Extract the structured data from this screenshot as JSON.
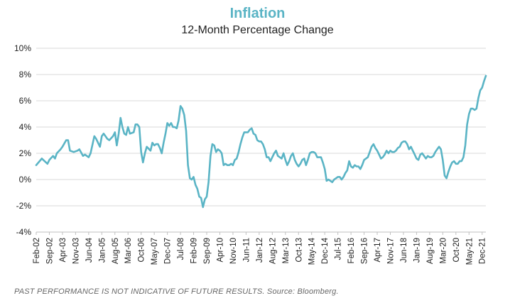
{
  "chart_data": {
    "type": "line",
    "title": "Inflation",
    "subtitle": "12-Month Percentage Change",
    "xlabel": "",
    "ylabel": "",
    "ylim": [
      -4,
      10
    ],
    "yticks": [
      10,
      8,
      6,
      4,
      2,
      0,
      -2,
      -4
    ],
    "ytick_labels": [
      "10%",
      "8%",
      "6%",
      "4%",
      "2%",
      "0%",
      "-2%",
      "-4%"
    ],
    "x_tick_labels": [
      "Feb-02",
      "Sep-02",
      "Apr-03",
      "Nov-03",
      "Jun-04",
      "Jan-05",
      "Aug-05",
      "Mar-06",
      "Oct-06",
      "May-07",
      "Dec-07",
      "Jul-08",
      "Feb-09",
      "Sep-09",
      "Apr-10",
      "Nov-10",
      "Jun-11",
      "Jan-12",
      "Aug-12",
      "Mar-13",
      "Oct-13",
      "May-14",
      "Dec-14",
      "Jul-15",
      "Feb-16",
      "Sep-16",
      "Apr-17",
      "Nov-17",
      "Jun-18",
      "Jan-19",
      "Aug-19",
      "Mar-20",
      "Oct-20",
      "May-21",
      "Dec-21"
    ],
    "grid": true,
    "line_color": "#5ab4c5",
    "series": [
      {
        "name": "",
        "points": [
          [
            "Feb-02",
            1.1
          ],
          [
            "May-02",
            1.6
          ],
          [
            "Aug-02",
            1.2
          ],
          [
            "Sep-02",
            1.5
          ],
          [
            "Nov-02",
            1.8
          ],
          [
            "Dec-02",
            1.6
          ],
          [
            "Jan-03",
            2.0
          ],
          [
            "Mar-03",
            2.3
          ],
          [
            "Apr-03",
            2.5
          ],
          [
            "Jun-03",
            3.0
          ],
          [
            "Jul-03",
            3.0
          ],
          [
            "Aug-03",
            2.2
          ],
          [
            "Oct-03",
            2.1
          ],
          [
            "Dec-03",
            2.2
          ],
          [
            "Jan-04",
            2.3
          ],
          [
            "Mar-04",
            1.8
          ],
          [
            "Apr-04",
            1.9
          ],
          [
            "Jun-04",
            1.7
          ],
          [
            "Jul-04",
            2.0
          ],
          [
            "Sep-04",
            3.3
          ],
          [
            "Oct-04",
            3.1
          ],
          [
            "Dec-04",
            2.5
          ],
          [
            "Jan-05",
            3.3
          ],
          [
            "Feb-05",
            3.5
          ],
          [
            "Apr-05",
            3.1
          ],
          [
            "May-05",
            3.0
          ],
          [
            "Jul-05",
            3.3
          ],
          [
            "Aug-05",
            3.6
          ],
          [
            "Sep-05",
            2.6
          ],
          [
            "Oct-05",
            3.5
          ],
          [
            "Nov-05",
            4.7
          ],
          [
            "Dec-05",
            4.0
          ],
          [
            "Jan-06",
            3.5
          ],
          [
            "Feb-06",
            3.4
          ],
          [
            "Mar-06",
            4.0
          ],
          [
            "Apr-06",
            3.5
          ],
          [
            "Jun-06",
            3.6
          ],
          [
            "Jul-06",
            4.2
          ],
          [
            "Aug-06",
            4.2
          ],
          [
            "Sep-06",
            4.0
          ],
          [
            "Oct-06",
            2.1
          ],
          [
            "Nov-06",
            1.3
          ],
          [
            "Dec-06",
            2.0
          ],
          [
            "Jan-07",
            2.5
          ],
          [
            "Mar-07",
            2.2
          ],
          [
            "Apr-07",
            2.8
          ],
          [
            "May-07",
            2.6
          ],
          [
            "Jun-07",
            2.7
          ],
          [
            "Jul-07",
            2.7
          ],
          [
            "Aug-07",
            2.4
          ],
          [
            "Sep-07",
            2.0
          ],
          [
            "Oct-07",
            2.8
          ],
          [
            "Nov-07",
            3.5
          ],
          [
            "Dec-07",
            4.3
          ],
          [
            "Jan-08",
            4.1
          ],
          [
            "Feb-08",
            4.3
          ],
          [
            "Mar-08",
            4.0
          ],
          [
            "Apr-08",
            4.0
          ],
          [
            "May-08",
            3.9
          ],
          [
            "Jun-08",
            4.5
          ],
          [
            "Jul-08",
            5.6
          ],
          [
            "Aug-08",
            5.4
          ],
          [
            "Sep-08",
            4.9
          ],
          [
            "Oct-08",
            3.7
          ],
          [
            "Nov-08",
            1.1
          ],
          [
            "Dec-08",
            0.1
          ],
          [
            "Jan-09",
            0.0
          ],
          [
            "Feb-09",
            0.2
          ],
          [
            "Mar-09",
            -0.4
          ],
          [
            "Apr-09",
            -0.7
          ],
          [
            "May-09",
            -1.3
          ],
          [
            "Jun-09",
            -1.4
          ],
          [
            "Jul-09",
            -2.1
          ],
          [
            "Aug-09",
            -1.5
          ],
          [
            "Sep-09",
            -1.3
          ],
          [
            "Oct-09",
            -0.2
          ],
          [
            "Nov-09",
            1.8
          ],
          [
            "Dec-09",
            2.7
          ],
          [
            "Jan-10",
            2.6
          ],
          [
            "Feb-10",
            2.1
          ],
          [
            "Mar-10",
            2.3
          ],
          [
            "Apr-10",
            2.2
          ],
          [
            "May-10",
            2.0
          ],
          [
            "Jun-10",
            1.1
          ],
          [
            "Jul-10",
            1.2
          ],
          [
            "Aug-10",
            1.1
          ],
          [
            "Sep-10",
            1.1
          ],
          [
            "Oct-10",
            1.2
          ],
          [
            "Nov-10",
            1.1
          ],
          [
            "Dec-10",
            1.5
          ],
          [
            "Jan-11",
            1.6
          ],
          [
            "Feb-11",
            2.1
          ],
          [
            "Mar-11",
            2.7
          ],
          [
            "Apr-11",
            3.2
          ],
          [
            "May-11",
            3.6
          ],
          [
            "Jun-11",
            3.6
          ],
          [
            "Jul-11",
            3.6
          ],
          [
            "Aug-11",
            3.8
          ],
          [
            "Sep-11",
            3.9
          ],
          [
            "Oct-11",
            3.5
          ],
          [
            "Nov-11",
            3.4
          ],
          [
            "Dec-11",
            3.0
          ],
          [
            "Jan-12",
            2.9
          ],
          [
            "Feb-12",
            2.9
          ],
          [
            "Mar-12",
            2.7
          ],
          [
            "Apr-12",
            2.3
          ],
          [
            "May-12",
            1.7
          ],
          [
            "Jun-12",
            1.7
          ],
          [
            "Jul-12",
            1.4
          ],
          [
            "Aug-12",
            1.7
          ],
          [
            "Sep-12",
            2.0
          ],
          [
            "Oct-12",
            2.2
          ],
          [
            "Nov-12",
            1.8
          ],
          [
            "Dec-12",
            1.7
          ],
          [
            "Jan-13",
            1.6
          ],
          [
            "Feb-13",
            2.0
          ],
          [
            "Mar-13",
            1.5
          ],
          [
            "Apr-13",
            1.1
          ],
          [
            "May-13",
            1.4
          ],
          [
            "Jun-13",
            1.8
          ],
          [
            "Jul-13",
            2.0
          ],
          [
            "Aug-13",
            1.5
          ],
          [
            "Sep-13",
            1.2
          ],
          [
            "Oct-13",
            1.0
          ],
          [
            "Nov-13",
            1.2
          ],
          [
            "Dec-13",
            1.5
          ],
          [
            "Jan-14",
            1.6
          ],
          [
            "Feb-14",
            1.1
          ],
          [
            "Mar-14",
            1.5
          ],
          [
            "Apr-14",
            2.0
          ],
          [
            "May-14",
            2.1
          ],
          [
            "Jun-14",
            2.1
          ],
          [
            "Jul-14",
            2.0
          ],
          [
            "Aug-14",
            1.7
          ],
          [
            "Sep-14",
            1.7
          ],
          [
            "Oct-14",
            1.7
          ],
          [
            "Nov-14",
            1.3
          ],
          [
            "Dec-14",
            0.8
          ],
          [
            "Jan-15",
            -0.1
          ],
          [
            "Feb-15",
            0.0
          ],
          [
            "Mar-15",
            -0.1
          ],
          [
            "Apr-15",
            -0.2
          ],
          [
            "May-15",
            0.0
          ],
          [
            "Jun-15",
            0.1
          ],
          [
            "Jul-15",
            0.2
          ],
          [
            "Aug-15",
            0.2
          ],
          [
            "Sep-15",
            0.0
          ],
          [
            "Oct-15",
            0.2
          ],
          [
            "Nov-15",
            0.5
          ],
          [
            "Dec-15",
            0.7
          ],
          [
            "Jan-16",
            1.4
          ],
          [
            "Feb-16",
            1.0
          ],
          [
            "Mar-16",
            0.9
          ],
          [
            "Apr-16",
            1.1
          ],
          [
            "May-16",
            1.0
          ],
          [
            "Jun-16",
            1.0
          ],
          [
            "Jul-16",
            0.8
          ],
          [
            "Aug-16",
            1.1
          ],
          [
            "Sep-16",
            1.5
          ],
          [
            "Oct-16",
            1.6
          ],
          [
            "Nov-16",
            1.7
          ],
          [
            "Dec-16",
            2.1
          ],
          [
            "Jan-17",
            2.5
          ],
          [
            "Feb-17",
            2.7
          ],
          [
            "Mar-17",
            2.4
          ],
          [
            "Apr-17",
            2.2
          ],
          [
            "May-17",
            1.9
          ],
          [
            "Jun-17",
            1.6
          ],
          [
            "Jul-17",
            1.7
          ],
          [
            "Aug-17",
            1.9
          ],
          [
            "Sep-17",
            2.2
          ],
          [
            "Oct-17",
            2.0
          ],
          [
            "Nov-17",
            2.2
          ],
          [
            "Dec-17",
            2.1
          ],
          [
            "Jan-18",
            2.1
          ],
          [
            "Feb-18",
            2.2
          ],
          [
            "Mar-18",
            2.4
          ],
          [
            "Apr-18",
            2.5
          ],
          [
            "May-18",
            2.8
          ],
          [
            "Jun-18",
            2.9
          ],
          [
            "Jul-18",
            2.9
          ],
          [
            "Aug-18",
            2.7
          ],
          [
            "Sep-18",
            2.3
          ],
          [
            "Oct-18",
            2.5
          ],
          [
            "Nov-18",
            2.2
          ],
          [
            "Dec-18",
            1.9
          ],
          [
            "Jan-19",
            1.6
          ],
          [
            "Feb-19",
            1.5
          ],
          [
            "Mar-19",
            1.9
          ],
          [
            "Apr-19",
            2.0
          ],
          [
            "May-19",
            1.8
          ],
          [
            "Jun-19",
            1.6
          ],
          [
            "Jul-19",
            1.8
          ],
          [
            "Aug-19",
            1.7
          ],
          [
            "Sep-19",
            1.7
          ],
          [
            "Oct-19",
            1.8
          ],
          [
            "Nov-19",
            2.1
          ],
          [
            "Dec-19",
            2.3
          ],
          [
            "Jan-20",
            2.5
          ],
          [
            "Feb-20",
            2.3
          ],
          [
            "Mar-20",
            1.5
          ],
          [
            "Apr-20",
            0.3
          ],
          [
            "May-20",
            0.1
          ],
          [
            "Jun-20",
            0.6
          ],
          [
            "Jul-20",
            1.0
          ],
          [
            "Aug-20",
            1.3
          ],
          [
            "Sep-20",
            1.4
          ],
          [
            "Oct-20",
            1.2
          ],
          [
            "Nov-20",
            1.2
          ],
          [
            "Dec-20",
            1.4
          ],
          [
            "Jan-21",
            1.4
          ],
          [
            "Feb-21",
            1.7
          ],
          [
            "Mar-21",
            2.6
          ],
          [
            "Apr-21",
            4.2
          ],
          [
            "May-21",
            5.0
          ],
          [
            "Jun-21",
            5.4
          ],
          [
            "Jul-21",
            5.4
          ],
          [
            "Aug-21",
            5.3
          ],
          [
            "Sep-21",
            5.4
          ],
          [
            "Oct-21",
            6.2
          ],
          [
            "Nov-21",
            6.8
          ],
          [
            "Dec-21",
            7.0
          ],
          [
            "Jan-22",
            7.5
          ],
          [
            "Feb-22",
            7.9
          ]
        ]
      }
    ]
  },
  "footnote": "PAST PERFORMANCE IS NOT INDICATIVE OF FUTURE RESULTS. Source: Bloomberg."
}
